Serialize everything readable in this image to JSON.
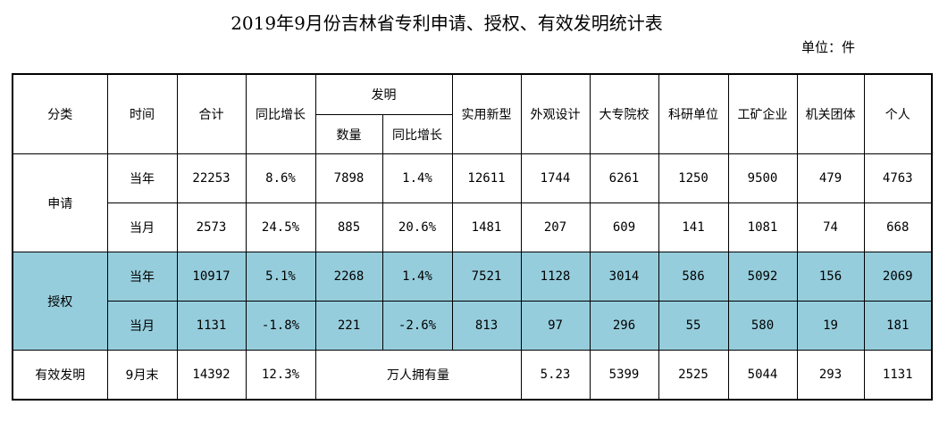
{
  "title": "2019年9月份吉林省专利申请、授权、有效发明统计表",
  "unit_label": "单位：件",
  "header": {
    "category": "分类",
    "time": "时间",
    "total": "合计",
    "yoy": "同比增长",
    "invention": "发明",
    "inv_count": "数量",
    "inv_yoy": "同比增长",
    "utility": "实用新型",
    "design": "外观设计",
    "university": "大专院校",
    "research": "科研单位",
    "enterprise": "工矿企业",
    "institution": "机关团体",
    "individual": "个人"
  },
  "application": {
    "label": "申请",
    "year": {
      "time": "当年",
      "total": "22253",
      "yoy": "8.6%",
      "inv_count": "7898",
      "inv_yoy": "1.4%",
      "utility": "12611",
      "design": "1744",
      "university": "6261",
      "research": "1250",
      "enterprise": "9500",
      "institution": "479",
      "individual": "4763"
    },
    "month": {
      "time": "当月",
      "total": "2573",
      "yoy": "24.5%",
      "inv_count": "885",
      "inv_yoy": "20.6%",
      "utility": "1481",
      "design": "207",
      "university": "609",
      "research": "141",
      "enterprise": "1081",
      "institution": "74",
      "individual": "668"
    }
  },
  "grant": {
    "label": "授权",
    "year": {
      "time": "当年",
      "total": "10917",
      "yoy": "5.1%",
      "inv_count": "2268",
      "inv_yoy": "1.4%",
      "utility": "7521",
      "design": "1128",
      "university": "3014",
      "research": "586",
      "enterprise": "5092",
      "institution": "156",
      "individual": "2069"
    },
    "month": {
      "time": "当月",
      "total": "1131",
      "yoy": "-1.8%",
      "inv_count": "221",
      "inv_yoy": "-2.6%",
      "utility": "813",
      "design": "97",
      "university": "296",
      "research": "55",
      "enterprise": "580",
      "institution": "19",
      "individual": "181"
    }
  },
  "valid": {
    "label": "有效发明",
    "time": "9月末",
    "total": "14392",
    "yoy": "12.3%",
    "per_10k_label": "万人拥有量",
    "per_10k_value": "5.23",
    "university": "5399",
    "research": "2525",
    "enterprise": "5044",
    "institution": "293",
    "individual": "1131"
  }
}
